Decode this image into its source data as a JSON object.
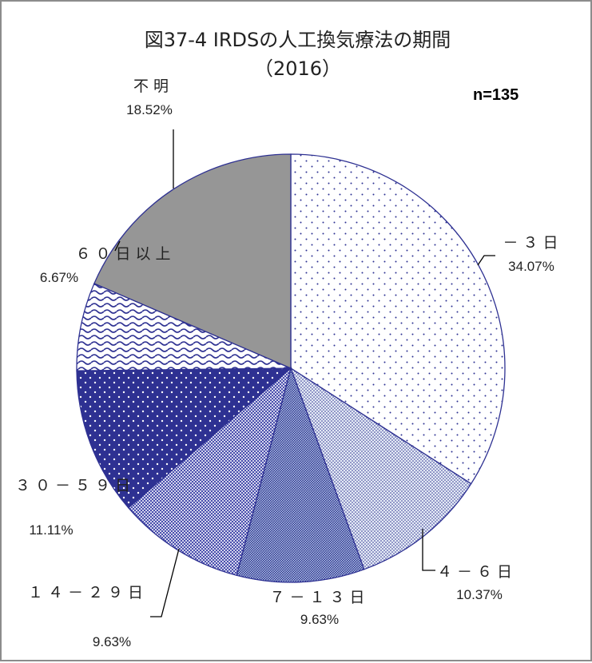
{
  "chart_data": {
    "type": "pie",
    "title": "図37-4 IRDSの人工換気療法の期間",
    "subtitle": "（2016）",
    "annotation": "n=135",
    "categories": [
      "－３日",
      "４－６日",
      "７－１３日",
      "１４－２９日",
      "３０－５９日",
      "６０日以上",
      "不明"
    ],
    "values": [
      34.07,
      10.37,
      9.63,
      9.63,
      11.11,
      6.67,
      18.52
    ],
    "value_labels": [
      "34.07%",
      "10.37%",
      "9.63%",
      "9.63%",
      "11.11%",
      "6.67%",
      "18.52%"
    ],
    "colors": [
      "#ffffff",
      "#e4ebf5",
      "#b7cde6",
      "#4a4fae",
      "#2e3192",
      "#ffffff",
      "#969696"
    ]
  }
}
